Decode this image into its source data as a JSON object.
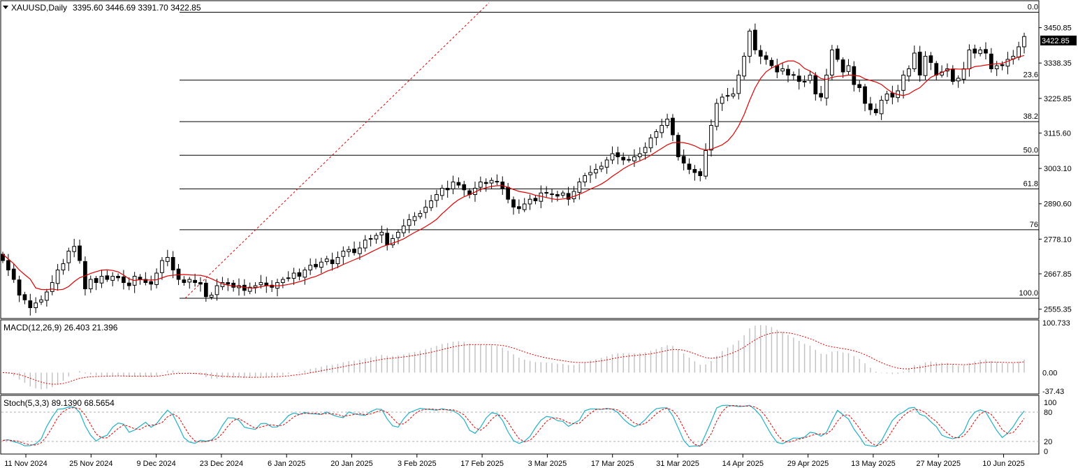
{
  "main": {
    "symbol_label": "XAUUSD,Daily",
    "ohlc_label": "3395.60 3446.69 3391.70 3422.85",
    "last_price": "3422.85",
    "price_ticks": [
      "3450.85",
      "3338.35",
      "3225.85",
      "3115.60",
      "3003.10",
      "2890.60",
      "2778.10",
      "2667.85",
      "2555.35"
    ],
    "fib_levels": [
      {
        "label": "0.0",
        "price": 3500
      },
      {
        "label": "23.6",
        "price": 3284
      },
      {
        "label": "38.2",
        "price": 3152
      },
      {
        "label": "50.0",
        "price": 3045
      },
      {
        "label": "61.8",
        "price": 2938
      },
      {
        "label": "76",
        "price": 2808
      },
      {
        "label": "100.0",
        "price": 2590
      }
    ]
  },
  "macd": {
    "label": "MACD(12,26,9) 26.403 21.396",
    "ticks": [
      "100.733",
      "0.00",
      "-37.43"
    ]
  },
  "stoch": {
    "label": "Stoch(5,3,3) 89.1390 68.5654",
    "ticks": [
      "100",
      "80",
      "20",
      "0"
    ]
  },
  "date_labels": [
    "11 Nov 2024",
    "25 Nov 2024",
    "9 Dec 2024",
    "23 Dec 2024",
    "6 Jan 2025",
    "20 Jan 2025",
    "3 Feb 2025",
    "17 Feb 2025",
    "3 Mar 2025",
    "17 Mar 2025",
    "31 Mar 2025",
    "14 Apr 2025",
    "29 Apr 2025",
    "13 May 2025",
    "27 May 2025",
    "10 Jun 2025"
  ],
  "colors": {
    "ma_line": "#e00000",
    "stoch_main": "#20b0c8",
    "stoch_signal": "#e00000",
    "macd_signal": "#e00000",
    "macd_hist": "#c0c0c0",
    "fib": "#000000",
    "trend_line": "#e00000"
  },
  "chart_data": [
    {
      "type": "candlestick",
      "title": "XAUUSD,Daily",
      "ylim": [
        2530,
        3530
      ],
      "ma_period_unknown": true,
      "closes_approx": [
        2710,
        2680,
        2650,
        2600,
        2585,
        2560,
        2575,
        2585,
        2610,
        2640,
        2680,
        2700,
        2740,
        2755,
        2710,
        2620,
        2650,
        2640,
        2660,
        2650,
        2660,
        2655,
        2640,
        2630,
        2660,
        2650,
        2640,
        2635,
        2670,
        2710,
        2720,
        2680,
        2650,
        2640,
        2650,
        2640,
        2635,
        2595,
        2600,
        2630,
        2640,
        2635,
        2625,
        2630,
        2615,
        2625,
        2630,
        2640,
        2630,
        2625,
        2640,
        2650,
        2655,
        2670,
        2660,
        2680,
        2695,
        2690,
        2705,
        2715,
        2700,
        2720,
        2740,
        2745,
        2735,
        2750,
        2775,
        2780,
        2790,
        2800,
        2760,
        2780,
        2800,
        2820,
        2840,
        2850,
        2860,
        2880,
        2900,
        2920,
        2940,
        2935,
        2960,
        2950,
        2935,
        2920,
        2940,
        2960,
        2955,
        2965,
        2960,
        2940,
        2905,
        2880,
        2875,
        2890,
        2905,
        2900,
        2925,
        2925,
        2920,
        2915,
        2925,
        2905,
        2930,
        2960,
        2980,
        2990,
        3000,
        3010,
        3030,
        3050,
        3040,
        3030,
        3030,
        3040,
        3050,
        3070,
        3100,
        3120,
        3140,
        3160,
        3110,
        3040,
        3020,
        3000,
        2990,
        2980,
        3060,
        3140,
        3210,
        3230,
        3235,
        3240,
        3300,
        3360,
        3440,
        3380,
        3360,
        3350,
        3330,
        3310,
        3320,
        3300,
        3300,
        3280,
        3280,
        3300,
        3240,
        3230,
        3300,
        3380,
        3350,
        3310,
        3330,
        3270,
        3260,
        3210,
        3190,
        3180,
        3220,
        3240,
        3230,
        3250,
        3300,
        3320,
        3370,
        3300,
        3360,
        3340,
        3300,
        3310,
        3320,
        3280,
        3290,
        3320,
        3380,
        3370,
        3380,
        3370,
        3320,
        3330,
        3330,
        3350,
        3360,
        3390,
        3422.85
      ]
    },
    {
      "type": "line",
      "title": "MACD(12,26,9)",
      "series": [
        {
          "name": "",
          "values": [
            26.403
          ]
        },
        {
          "name": "",
          "values": [
            21.396
          ]
        }
      ],
      "ylim": [
        -37.43,
        100.733
      ]
    },
    {
      "type": "line",
      "title": "Stoch(5,3,3)",
      "series": [
        {
          "name": "",
          "values": [
            89.139
          ]
        },
        {
          "name": "",
          "values": [
            68.5654
          ]
        }
      ],
      "ylim": [
        0,
        100
      ]
    }
  ]
}
